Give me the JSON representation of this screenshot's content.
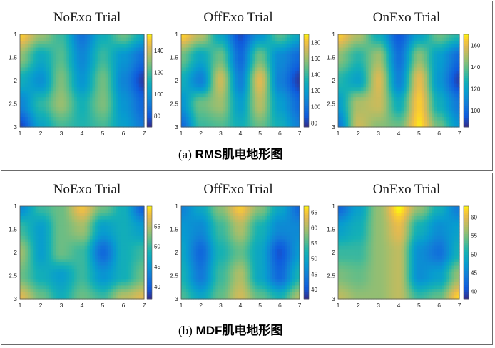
{
  "panels": [
    {
      "id": "a",
      "caption_tag": "(a)",
      "caption_text": "RMS肌电地形图",
      "maps": [
        {
          "title": "NoExo Trial",
          "cbar_ticks": [
            80,
            100,
            120,
            140
          ],
          "clim": [
            70,
            155
          ]
        },
        {
          "title": "OffExo Trial",
          "cbar_ticks": [
            80,
            100,
            120,
            140,
            160,
            180
          ],
          "clim": [
            75,
            190
          ]
        },
        {
          "title": "OnExo Trial",
          "cbar_ticks": [
            100,
            120,
            140,
            160
          ],
          "clim": [
            85,
            170
          ]
        }
      ]
    },
    {
      "id": "b",
      "caption_tag": "(b)",
      "caption_text": "MDF肌电地形图",
      "maps": [
        {
          "title": "NoExo Trial",
          "cbar_ticks": [
            40,
            45,
            50,
            55
          ],
          "clim": [
            37,
            60
          ]
        },
        {
          "title": "OffExo Trial",
          "cbar_ticks": [
            40,
            45,
            50,
            55,
            60,
            65
          ],
          "clim": [
            37,
            67
          ]
        },
        {
          "title": "OnExo Trial",
          "cbar_ticks": [
            40,
            45,
            50,
            55,
            60
          ],
          "clim": [
            38,
            63
          ]
        }
      ]
    }
  ],
  "chart_data": [
    {
      "type": "heatmap",
      "panel": "a",
      "title": "NoExo Trial",
      "x": [
        1,
        2,
        3,
        4,
        5,
        6,
        7
      ],
      "y": [
        1,
        1.5,
        2,
        2.5,
        3
      ],
      "xlim": [
        1,
        7
      ],
      "ylim": [
        1,
        3
      ],
      "colorbar_ticks": [
        80,
        100,
        120,
        140
      ],
      "z": [
        [
          150,
          132,
          118,
          88,
          110,
          125,
          108
        ],
        [
          130,
          108,
          122,
          95,
          118,
          100,
          86
        ],
        [
          110,
          98,
          128,
          100,
          126,
          94,
          74
        ],
        [
          94,
          116,
          132,
          112,
          128,
          100,
          84
        ],
        [
          76,
          106,
          120,
          114,
          120,
          104,
          90
        ]
      ]
    },
    {
      "type": "heatmap",
      "panel": "a",
      "title": "OffExo Trial",
      "x": [
        1,
        2,
        3,
        4,
        5,
        6,
        7
      ],
      "y": [
        1,
        1.5,
        2,
        2.5,
        3
      ],
      "xlim": [
        1,
        7
      ],
      "ylim": [
        1,
        3
      ],
      "colorbar_ticks": [
        80,
        100,
        120,
        140,
        160,
        180
      ],
      "z": [
        [
          185,
          165,
          125,
          85,
          115,
          145,
          125
        ],
        [
          150,
          125,
          150,
          95,
          150,
          110,
          95
        ],
        [
          130,
          105,
          170,
          105,
          175,
          105,
          80
        ],
        [
          115,
          150,
          160,
          120,
          165,
          120,
          95
        ],
        [
          95,
          140,
          145,
          130,
          150,
          130,
          105
        ]
      ]
    },
    {
      "type": "heatmap",
      "panel": "a",
      "title": "OnExo Trial",
      "x": [
        1,
        2,
        3,
        4,
        5,
        6,
        7
      ],
      "y": [
        1,
        1.5,
        2,
        2.5,
        3
      ],
      "xlim": [
        1,
        7
      ],
      "ylim": [
        1,
        3
      ],
      "colorbar_ticks": [
        100,
        120,
        140,
        160
      ],
      "z": [
        [
          165,
          150,
          125,
          95,
          120,
          140,
          130
        ],
        [
          145,
          130,
          148,
          102,
          145,
          118,
          100
        ],
        [
          130,
          120,
          158,
          108,
          160,
          115,
          90
        ],
        [
          118,
          150,
          155,
          125,
          165,
          125,
          105
        ],
        [
          105,
          155,
          145,
          140,
          168,
          140,
          115
        ]
      ]
    },
    {
      "type": "heatmap",
      "panel": "b",
      "title": "NoExo Trial",
      "x": [
        1,
        2,
        3,
        4,
        5,
        6,
        7
      ],
      "y": [
        1,
        1.5,
        2,
        2.5,
        3
      ],
      "xlim": [
        1,
        7
      ],
      "ylim": [
        1,
        3
      ],
      "colorbar_ticks": [
        40,
        45,
        50,
        55
      ],
      "z": [
        [
          44,
          50,
          52,
          58,
          52,
          48,
          40
        ],
        [
          50,
          46,
          52,
          54,
          46,
          48,
          46
        ],
        [
          54,
          46,
          52,
          50,
          41,
          48,
          50
        ],
        [
          52,
          48,
          46,
          50,
          45,
          48,
          52
        ],
        [
          57,
          52,
          48,
          52,
          50,
          55,
          57
        ]
      ]
    },
    {
      "type": "heatmap",
      "panel": "b",
      "title": "OffExo Trial",
      "x": [
        1,
        2,
        3,
        4,
        5,
        6,
        7
      ],
      "y": [
        1,
        1.5,
        2,
        2.5,
        3
      ],
      "xlim": [
        1,
        7
      ],
      "ylim": [
        1,
        3
      ],
      "colorbar_ticks": [
        40,
        45,
        50,
        55,
        60,
        65
      ],
      "z": [
        [
          45,
          50,
          58,
          65,
          58,
          50,
          42
        ],
        [
          48,
          46,
          54,
          60,
          52,
          46,
          46
        ],
        [
          50,
          42,
          52,
          56,
          50,
          40,
          48
        ],
        [
          52,
          44,
          54,
          60,
          50,
          42,
          52
        ],
        [
          55,
          50,
          56,
          62,
          56,
          52,
          60
        ]
      ]
    },
    {
      "type": "heatmap",
      "panel": "b",
      "title": "OnExo Trial",
      "x": [
        1,
        2,
        3,
        4,
        5,
        6,
        7
      ],
      "y": [
        1,
        1.5,
        2,
        2.5,
        3
      ],
      "xlim": [
        1,
        7
      ],
      "ylim": [
        1,
        3
      ],
      "colorbar_ticks": [
        40,
        45,
        50,
        55,
        60
      ],
      "z": [
        [
          42,
          48,
          56,
          63,
          56,
          50,
          44
        ],
        [
          48,
          50,
          56,
          60,
          50,
          46,
          48
        ],
        [
          52,
          52,
          56,
          58,
          46,
          43,
          50
        ],
        [
          55,
          54,
          56,
          58,
          46,
          48,
          56
        ],
        [
          58,
          56,
          56,
          58,
          52,
          54,
          62
        ]
      ]
    }
  ]
}
